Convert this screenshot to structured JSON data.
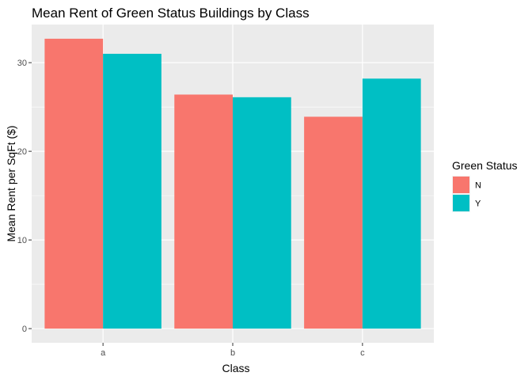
{
  "chart_data": {
    "type": "bar",
    "title": "Mean Rent of Green Status Buildings by Class",
    "xlabel": "Class",
    "ylabel": "Mean Rent per SqFt ($)",
    "categories": [
      "a",
      "b",
      "c"
    ],
    "series": [
      {
        "name": "N",
        "values": [
          32.7,
          26.4,
          23.9
        ],
        "color": "#F8766D"
      },
      {
        "name": "Y",
        "values": [
          31.0,
          26.1,
          28.2
        ],
        "color": "#00BFC4"
      }
    ],
    "ylim": [
      -1.6,
      34.3
    ],
    "yticks": [
      0,
      10,
      20,
      30
    ],
    "grid": true,
    "legend": {
      "title": "Green Status",
      "position": "right"
    },
    "panel_background": "#EBEBEB",
    "grid_color": "#FFFFFF"
  }
}
